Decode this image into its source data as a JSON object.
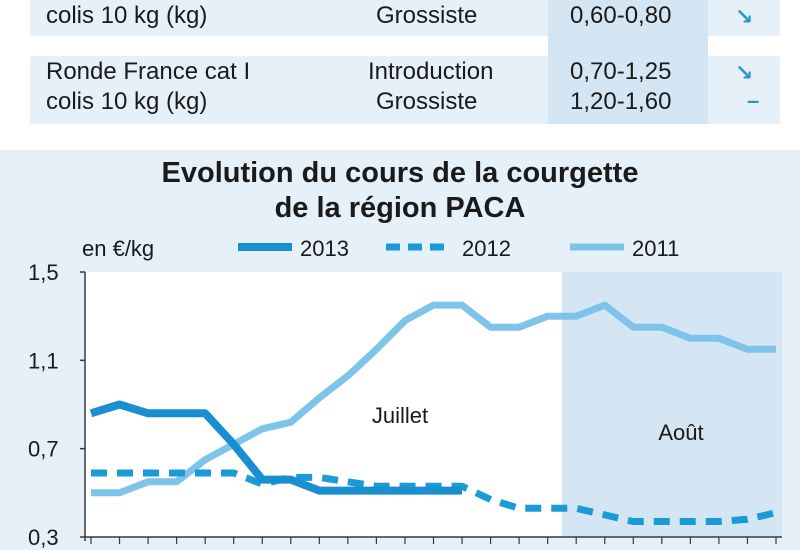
{
  "price_table": {
    "rows": [
      {
        "product_lines": [
          "colis 10 kg (kg)"
        ],
        "stage_lines": [
          "Grossiste"
        ],
        "price_lines": [
          "0,60-0,80"
        ],
        "trends": [
          "down"
        ]
      },
      {
        "product_lines": [
          "Ronde France cat I",
          "colis 10 kg (kg)"
        ],
        "stage_lines": [
          "Introduction",
          "Grossiste"
        ],
        "price_lines": [
          "0,70-1,25",
          "1,20-1,60"
        ],
        "trends": [
          "down",
          "stable"
        ]
      }
    ],
    "trend_symbols": {
      "down": "↘",
      "stable": "–"
    }
  },
  "chart_data": {
    "type": "line",
    "title_lines": [
      "Evolution du cours de la courgette",
      "de la région PACA"
    ],
    "ylabel": "en €/kg",
    "ylim": [
      0.3,
      1.5
    ],
    "yticks": [
      0.3,
      0.7,
      1.1,
      1.5
    ],
    "ytick_labels": [
      "0,3",
      "0,7",
      "1,1",
      "1,5"
    ],
    "x_count": 25,
    "regions": [
      {
        "label": "Juillet",
        "from": 0,
        "to": 17,
        "shaded": false
      },
      {
        "label": "Août",
        "from": 17,
        "to": 24,
        "shaded": true
      }
    ],
    "series": [
      {
        "name": "2013",
        "style": "solid-thick",
        "color": "#1a8fcf",
        "x": [
          0,
          1,
          2,
          3,
          4,
          5,
          6,
          7,
          8,
          9,
          10,
          11,
          12,
          13
        ],
        "values": [
          0.86,
          0.9,
          0.86,
          0.86,
          0.86,
          0.72,
          0.56,
          0.56,
          0.51,
          0.51,
          0.51,
          0.51,
          0.51,
          0.51
        ]
      },
      {
        "name": "2012",
        "style": "dashed",
        "color": "#1a9ad6",
        "x": [
          0,
          1,
          2,
          3,
          4,
          5,
          6,
          7,
          8,
          9,
          10,
          11,
          12,
          13,
          14,
          15,
          16,
          17,
          18,
          19,
          20,
          21,
          22,
          23,
          24
        ],
        "values": [
          0.59,
          0.59,
          0.59,
          0.59,
          0.59,
          0.59,
          0.54,
          0.57,
          0.57,
          0.55,
          0.53,
          0.53,
          0.53,
          0.53,
          0.47,
          0.43,
          0.43,
          0.43,
          0.4,
          0.37,
          0.37,
          0.37,
          0.37,
          0.38,
          0.41
        ]
      },
      {
        "name": "2011",
        "style": "solid-light",
        "color": "#7ec4ea",
        "x": [
          0,
          1,
          2,
          3,
          4,
          5,
          6,
          7,
          8,
          9,
          10,
          11,
          12,
          13,
          14,
          15,
          16,
          17,
          18,
          19,
          20,
          21,
          22,
          23,
          24
        ],
        "values": [
          0.5,
          0.5,
          0.55,
          0.55,
          0.65,
          0.72,
          0.79,
          0.82,
          0.93,
          1.03,
          1.15,
          1.28,
          1.35,
          1.35,
          1.25,
          1.25,
          1.3,
          1.3,
          1.35,
          1.25,
          1.25,
          1.2,
          1.2,
          1.15,
          1.15
        ]
      }
    ],
    "grid": false,
    "legend_position": "top"
  },
  "colors": {
    "panel_bg": "#e6f0f8",
    "plot_bg": "#ffffff",
    "august_bg": "#d4e6f3",
    "axis": "#3a3a3a"
  }
}
